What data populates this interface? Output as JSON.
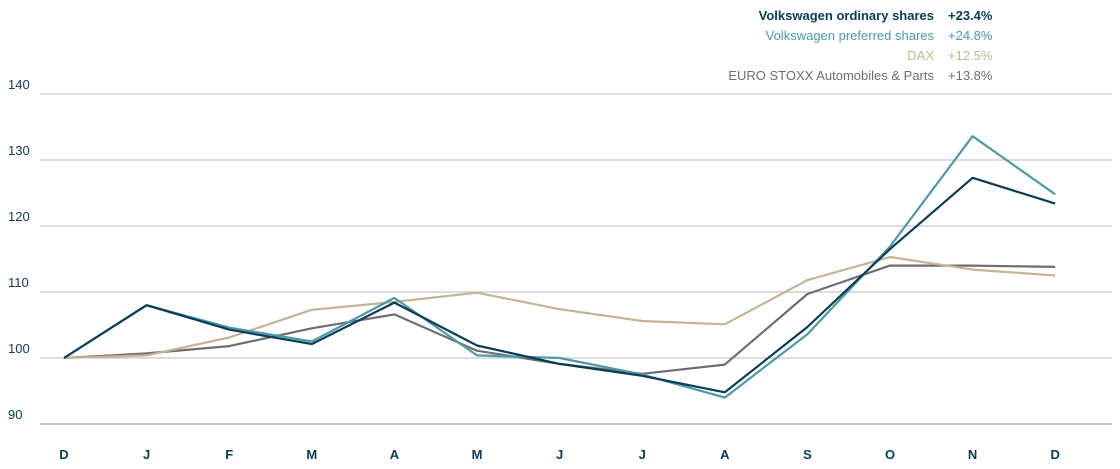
{
  "chart_data": {
    "type": "line",
    "categories": [
      "D",
      "J",
      "F",
      "M",
      "A",
      "M",
      "J",
      "J",
      "A",
      "S",
      "O",
      "N",
      "D"
    ],
    "ylim": [
      90,
      140
    ],
    "yticks": [
      90,
      100,
      110,
      120,
      130,
      140
    ],
    "grid": true,
    "legend_position": "top-right",
    "series": [
      {
        "name": "Volkswagen ordinary shares",
        "change": "+23.4%",
        "color": "#0a3b57",
        "values": [
          100,
          108,
          104.3,
          102.1,
          108.4,
          101.9,
          99.1,
          97.3,
          94.8,
          104.7,
          116.5,
          127.3,
          123.4
        ]
      },
      {
        "name": "Volkswagen preferred shares",
        "change": "+24.8%",
        "color": "#4b9aa5",
        "values": [
          100,
          108,
          104.6,
          102.5,
          109.1,
          100.4,
          100,
          97.5,
          94,
          103.6,
          116.9,
          133.6,
          124.8
        ]
      },
      {
        "name": "DAX",
        "change": "+12.5%",
        "color": "#c5b494",
        "values": [
          100,
          100.4,
          103.1,
          107.3,
          108.5,
          109.9,
          107.4,
          105.6,
          105.1,
          111.8,
          115.3,
          113.4,
          112.5
        ]
      },
      {
        "name": "EURO STOXX Automobiles & Parts",
        "change": "+13.8%",
        "color": "#6e6e6e",
        "values": [
          100,
          100.7,
          101.8,
          104.5,
          106.6,
          101.1,
          99.1,
          97.6,
          99,
          109.7,
          114,
          114,
          113.8
        ]
      }
    ]
  }
}
